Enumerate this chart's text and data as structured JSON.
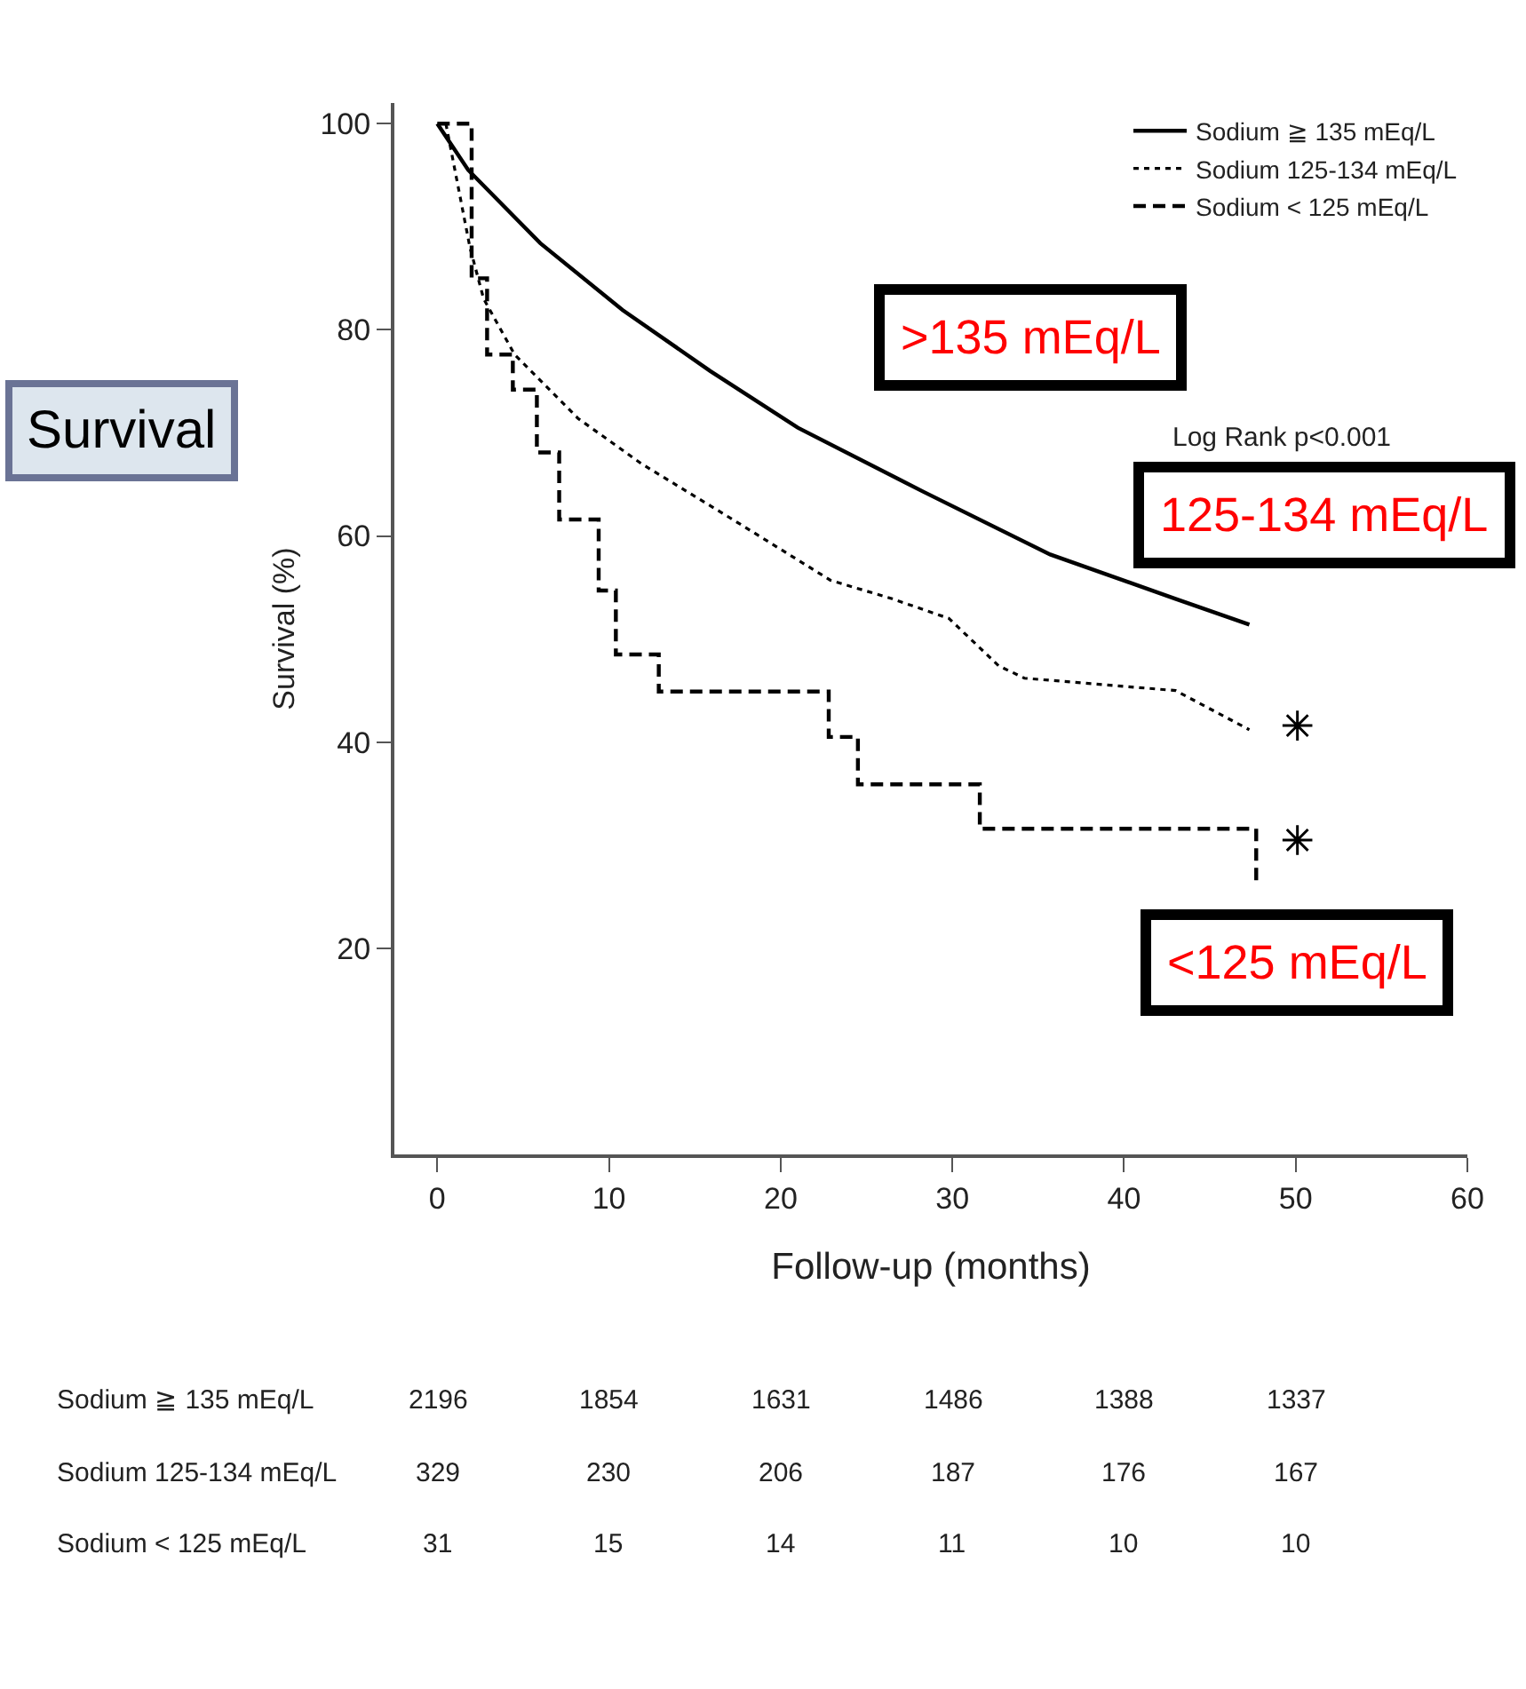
{
  "chart_data": {
    "type": "line",
    "xlabel": "Follow-up (months)",
    "ylabel": "Survival (%)",
    "xlim": [
      -2.5,
      60
    ],
    "xticks": [
      0,
      10,
      20,
      30,
      40,
      50,
      60
    ],
    "ylim": [
      0,
      102
    ],
    "yticks": [
      20,
      40,
      60,
      80,
      100
    ],
    "legend": "top right",
    "series": [
      {
        "name": "Sodium ≧ 135 mEq/L",
        "color": "#000000",
        "line_style": "solid",
        "x": [
          0,
          1.8,
          6,
          10.8,
          15.9,
          21,
          28.3,
          35.7,
          43,
          47.3
        ],
        "values": [
          100,
          95.5,
          88.4,
          81.9,
          76,
          70.5,
          64.3,
          58.2,
          53.9,
          51.4
        ]
      },
      {
        "name": "Sodium 125-134 mEq/L",
        "color": "#000000",
        "line_style": "dotted",
        "x": [
          0.5,
          1.9,
          2.7,
          4.5,
          8.2,
          11.9,
          17.3,
          22.9,
          26.5,
          29.8,
          32.7,
          34.2,
          43,
          47.3
        ],
        "values": [
          100,
          88,
          83,
          77.6,
          71.4,
          67,
          61.5,
          55.7,
          53.9,
          52,
          47.4,
          46.2,
          45,
          41.2
        ]
      },
      {
        "name": "Sodium < 125 mEq/L",
        "type": "step",
        "color": "#000000",
        "line_style": "dashed",
        "x": [
          0,
          2.0,
          2.9,
          4.4,
          5.8,
          7.1,
          9.4,
          10.4,
          12.9,
          22.8,
          24.5,
          31.6,
          47.7
        ],
        "values": [
          100,
          85,
          77.6,
          74.2,
          68.1,
          61.6,
          54.7,
          48.5,
          44.9,
          40.5,
          35.9,
          31.6,
          26
        ]
      },
      {
        "type": "scatter",
        "marker": "cross",
        "color": "#000000",
        "x": [
          50.1,
          50.1
        ],
        "values": [
          41.6,
          30.5
        ]
      }
    ],
    "annotations": [
      ">135 mEq/L",
      "125-134 mEq/L",
      "<125 mEq/L",
      "Log Rank p<0.001",
      "Survival",
      "Sodium ≧ 135 mEq/L",
      "2196",
      "1854",
      "1631",
      "1486",
      "1388",
      "1337",
      "Sodium 125-134 mEq/L",
      "329",
      "230",
      "206",
      "187",
      "176",
      "167",
      "Sodium < 125 mEq/L",
      "31",
      "15",
      "14",
      "11",
      "10",
      "10"
    ]
  }
}
